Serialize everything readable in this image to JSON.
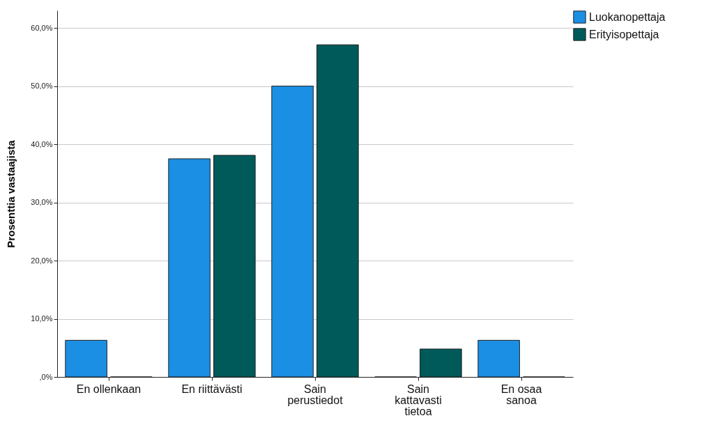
{
  "chart_data": {
    "type": "bar",
    "ylabel": "Prosenttia vastaajista",
    "categories": [
      "En ollenkaan",
      "En riittävästi",
      "Sain\nperustiedot",
      "Sain\nkattavasti\ntietoa",
      "En osaa\nsanoa"
    ],
    "series": [
      {
        "name": "Luokanopettaja",
        "color": "#1a8fe3",
        "values": [
          6.3,
          37.5,
          50.0,
          0,
          6.3
        ]
      },
      {
        "name": "Erityisopettaja",
        "color": "#005a5a",
        "values": [
          0,
          38.1,
          57.1,
          4.8,
          0
        ]
      }
    ],
    "ylim": [
      0,
      63
    ],
    "yticks": [
      {
        "value": 0,
        "label": ",0%"
      },
      {
        "value": 10,
        "label": "10,0%"
      },
      {
        "value": 20,
        "label": "20,0%"
      },
      {
        "value": 30,
        "label": "30,0%"
      },
      {
        "value": 40,
        "label": "40,0%"
      },
      {
        "value": 50,
        "label": "50,0%"
      },
      {
        "value": 60,
        "label": "60,0%"
      }
    ],
    "grid": "y",
    "legend": "top right"
  }
}
